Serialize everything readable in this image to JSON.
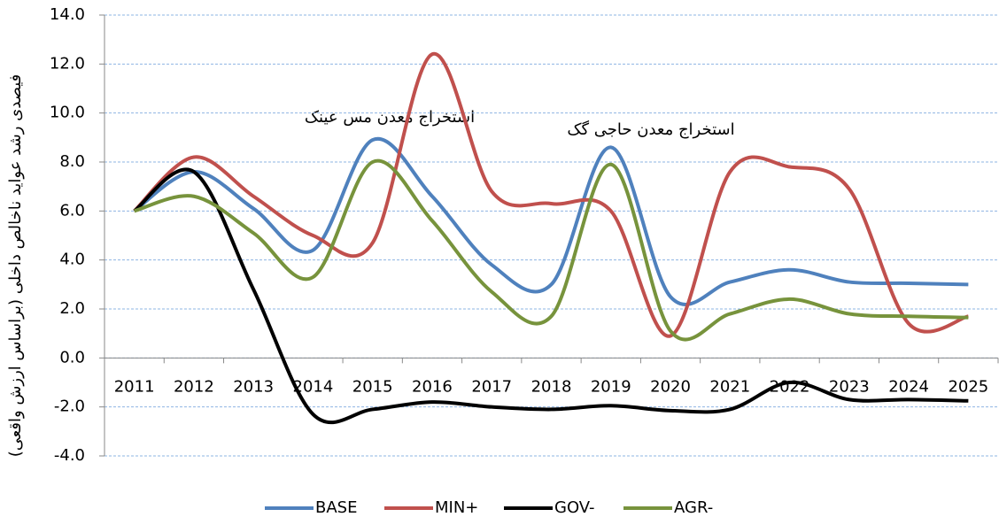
{
  "chart_data": {
    "type": "line",
    "y_label": "فیصدی رشد عواید ناخالص داخلی (براساس ارزش واقعی)",
    "annotations": [
      "استخراج معدن مس عینک",
      "استخراج معدن حاجی گک"
    ],
    "categories": [
      "2011",
      "2012",
      "2013",
      "2014",
      "2015",
      "2016",
      "2017",
      "2018",
      "2019",
      "2020",
      "2021",
      "2022",
      "2023",
      "2024",
      "2025"
    ],
    "series": [
      {
        "name": "BASE",
        "color": "#4f81bd",
        "values": [
          6.0,
          7.6,
          6.1,
          4.4,
          8.9,
          6.6,
          3.8,
          3.0,
          8.6,
          2.5,
          3.1,
          3.6,
          3.1,
          3.05,
          3.0
        ]
      },
      {
        "name": "MIN+",
        "color": "#c0504d",
        "values": [
          6.0,
          8.2,
          6.6,
          5.0,
          4.7,
          12.4,
          6.8,
          6.3,
          6.0,
          0.9,
          7.6,
          7.8,
          6.9,
          1.4,
          1.7
        ]
      },
      {
        "name": "GOV-",
        "color": "#000000",
        "values": [
          6.0,
          7.6,
          2.8,
          -2.3,
          -2.1,
          -1.8,
          -2.0,
          -2.1,
          -1.95,
          -2.15,
          -2.1,
          -1.0,
          -1.7,
          -1.7,
          -1.75
        ]
      },
      {
        "name": "AGR-",
        "color": "#77933c",
        "values": [
          6.0,
          6.6,
          5.1,
          3.3,
          8.0,
          5.6,
          2.7,
          1.7,
          7.9,
          1.1,
          1.8,
          2.4,
          1.8,
          1.7,
          1.65
        ]
      }
    ],
    "ylim": [
      -4,
      14
    ],
    "yticks": [
      {
        "value": -4,
        "label": "-4.0"
      },
      {
        "value": -2,
        "label": "-2.0"
      },
      {
        "value": 0,
        "label": "0.0"
      },
      {
        "value": 2,
        "label": "2.0"
      },
      {
        "value": 4,
        "label": "4.0"
      },
      {
        "value": 6,
        "label": "6.0"
      },
      {
        "value": 8,
        "label": "8.0"
      },
      {
        "value": 10,
        "label": "10.0"
      },
      {
        "value": 12,
        "label": "12.0"
      },
      {
        "value": 14,
        "label": "14.0"
      }
    ],
    "grid": true,
    "legend": "bottom"
  }
}
